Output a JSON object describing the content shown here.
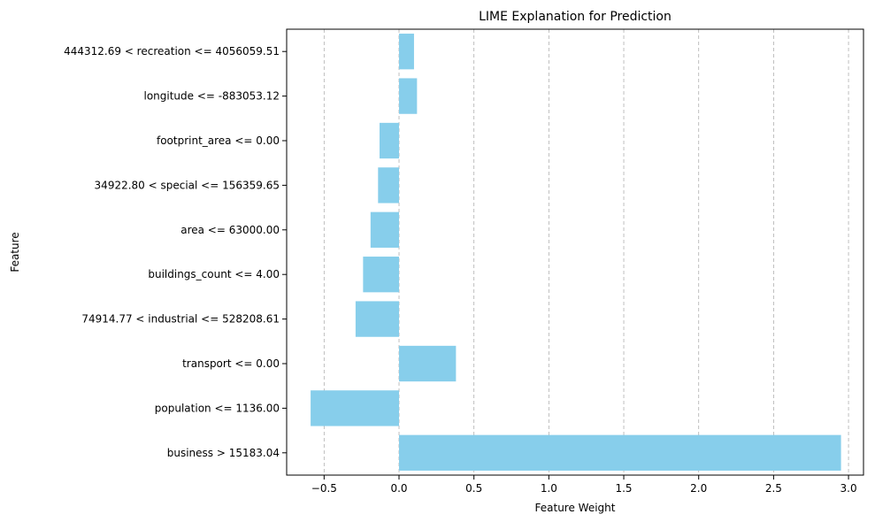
{
  "chart_data": {
    "type": "bar",
    "orientation": "horizontal",
    "title": "LIME Explanation for Prediction",
    "xlabel": "Feature Weight",
    "ylabel": "Feature",
    "xlim": [
      -0.75,
      3.1
    ],
    "xticks": [
      -0.5,
      0.0,
      0.5,
      1.0,
      1.5,
      2.0,
      2.5,
      3.0
    ],
    "xtick_labels": [
      "−0.5",
      "0.0",
      "0.5",
      "1.0",
      "1.5",
      "2.0",
      "2.5",
      "3.0"
    ],
    "grid": "vertical dashed",
    "bar_color": "#87ceeb",
    "categories": [
      "444312.69 < recreation <= 4056059.51",
      "longitude <= -883053.12",
      "footprint_area <= 0.00",
      "34922.80 < special <= 156359.65",
      "area <= 63000.00",
      "buildings_count <= 4.00",
      "74914.77 < industrial <= 528208.61",
      "transport <= 0.00",
      "population <= 1136.00",
      "business > 15183.04"
    ],
    "values": [
      0.1,
      0.12,
      -0.13,
      -0.14,
      -0.19,
      -0.24,
      -0.29,
      0.38,
      -0.59,
      2.95
    ]
  }
}
